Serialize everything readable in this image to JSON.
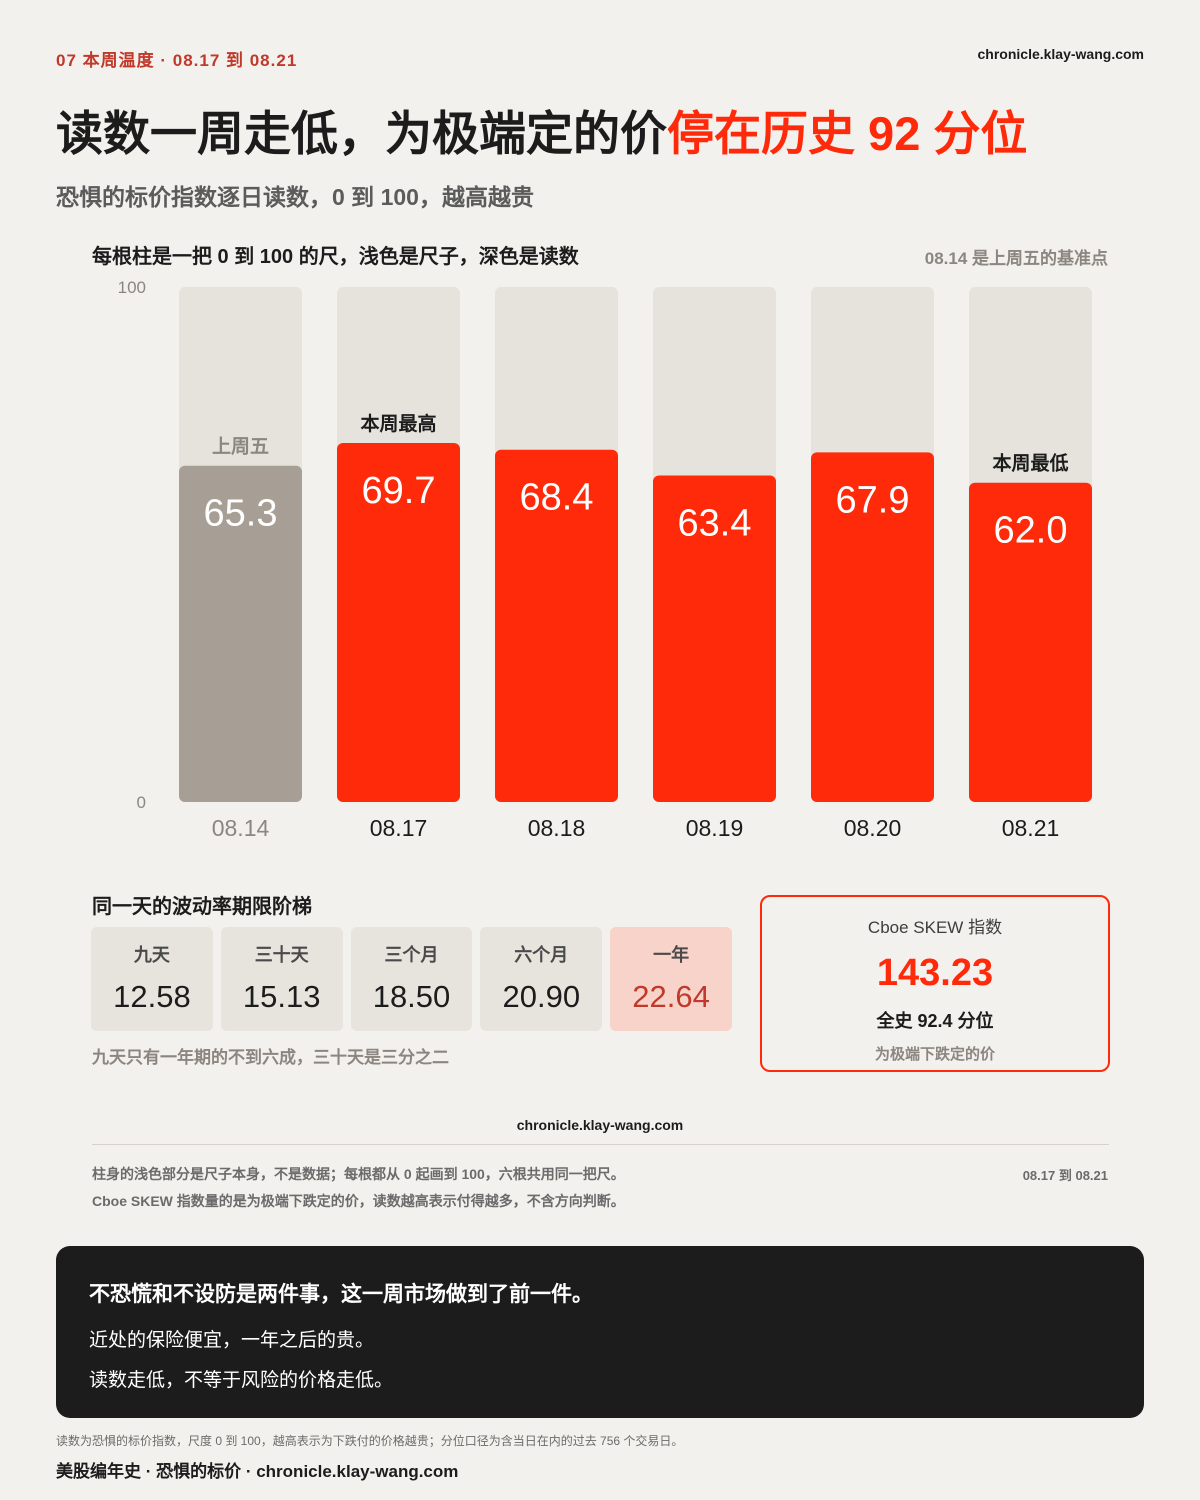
{
  "header": {
    "kicker": "07  本周温度 · 08.17 到 08.21",
    "site": "chronicle.klay-wang.com",
    "title_main": "读数一周走低，为极端定的价",
    "title_highlight": "停在历史 92 分位",
    "subtitle": "恐惧的标价指数逐日读数，0 到 100，越高越贵"
  },
  "chart_note": "每根柱是一把 0 到 100 的尺，浅色是尺子，深色是读数",
  "chart_base_note": "08.14 是上周五的基准点",
  "chart_data": {
    "type": "bar",
    "ylim": [
      0,
      100
    ],
    "yticks": [
      "0",
      "100"
    ],
    "categories": [
      "08.14",
      "08.17",
      "08.18",
      "08.19",
      "08.20",
      "08.21"
    ],
    "values": [
      65.3,
      69.7,
      68.4,
      63.4,
      67.9,
      62.0
    ],
    "value_labels": [
      "65.3",
      "69.7",
      "68.4",
      "63.4",
      "67.9",
      "62.0"
    ],
    "annotations": [
      "上周五",
      "本周最高",
      "",
      "",
      "",
      "本周最低"
    ],
    "colors": {
      "baseline_bar": "#a79f95",
      "week_bar": "#ff2a0a",
      "track": "#e6e3dd",
      "baseline_label": "#8b8680",
      "week_label": "#1c1c1c"
    }
  },
  "ladder": {
    "title": "同一天的波动率期限阶梯",
    "items": [
      {
        "label": "九天",
        "value": "12.58"
      },
      {
        "label": "三十天",
        "value": "15.13"
      },
      {
        "label": "三个月",
        "value": "18.50"
      },
      {
        "label": "六个月",
        "value": "20.90"
      },
      {
        "label": "一年",
        "value": "22.64"
      }
    ],
    "note": "九天只有一年期的不到六成，三十天是三分之二"
  },
  "skew": {
    "label": "Cboe SKEW 指数",
    "value": "143.23",
    "percentile": "全史 92.4 分位",
    "sub": "为极端下跌定的价"
  },
  "footer": {
    "site": "chronicle.klay-wang.com",
    "note1": "柱身的浅色部分是尺子本身，不是数据；每根都从 0 起画到 100，六根共用同一把尺。",
    "note2": "Cboe SKEW 指数量的是为极端下跌定的价，读数越高表示付得越多，不含方向判断。",
    "date_range": "08.17 到 08.21"
  },
  "takeaway": {
    "headline": "不恐慌和不设防是两件事，这一周市场做到了前一件。",
    "line1": "近处的保险便宜，一年之后的贵。",
    "line2": "读数走低，不等于风险的价格走低。"
  },
  "bottom": {
    "note": "读数为恐惧的标价指数，尺度 0 到 100，越高表示为下跌付的价格越贵；分位口径为含当日在内的过去 756 个交易日。",
    "brand": "美股编年史 · 恐惧的标价 · chronicle.klay-wang.com"
  }
}
